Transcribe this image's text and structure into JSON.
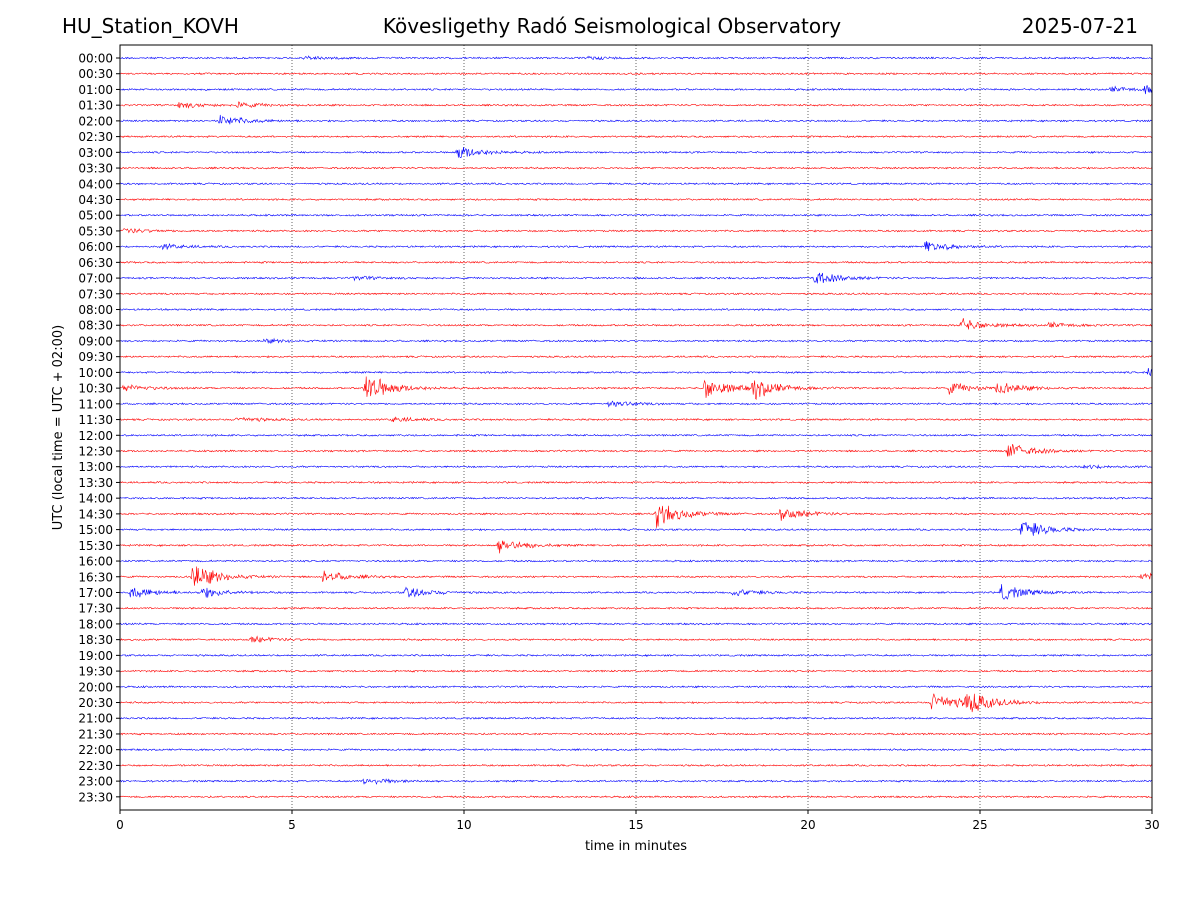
{
  "header": {
    "station": "HU_Station_KOVH",
    "observatory": "Kövesligethy Radó Seismological Observatory",
    "date": "2025-07-21"
  },
  "chart_data": {
    "type": "line",
    "title": "Kövesligethy Radó Seismological Observatory",
    "xlabel": "time in minutes",
    "ylabel": "UTC (local time = UTC + 02:00)",
    "xlim": [
      0,
      30
    ],
    "x_ticks": [
      0,
      5,
      10,
      15,
      20,
      25,
      30
    ],
    "x_grid": "dotted vertical lines at 5, 10, 15, 20, 25",
    "row_labels": [
      "00:00",
      "00:30",
      "01:00",
      "01:30",
      "02:00",
      "02:30",
      "03:00",
      "03:30",
      "04:00",
      "04:30",
      "05:00",
      "05:30",
      "06:00",
      "06:30",
      "07:00",
      "07:30",
      "08:00",
      "08:30",
      "09:00",
      "09:30",
      "10:00",
      "10:30",
      "11:00",
      "11:30",
      "12:00",
      "12:30",
      "13:00",
      "13:30",
      "14:00",
      "14:30",
      "15:00",
      "15:30",
      "16:00",
      "16:30",
      "17:00",
      "17:30",
      "18:00",
      "18:30",
      "19:00",
      "19:30",
      "20:00",
      "20:30",
      "21:00",
      "21:30",
      "22:00",
      "22:30",
      "23:00",
      "23:30"
    ],
    "trace_colors": [
      "#0000ff",
      "#ff0000"
    ],
    "baseline_noise": 0.07,
    "events": [
      {
        "row": "00:00",
        "minute": 5.3,
        "amplitude": 0.15
      },
      {
        "row": "00:00",
        "minute": 13.6,
        "amplitude": 0.12
      },
      {
        "row": "01:00",
        "minute": 28.8,
        "amplitude": 0.2
      },
      {
        "row": "01:00",
        "minute": 29.8,
        "amplitude": 0.3
      },
      {
        "row": "01:30",
        "minute": 1.7,
        "amplitude": 0.25
      },
      {
        "row": "01:30",
        "minute": 3.4,
        "amplitude": 0.2
      },
      {
        "row": "02:00",
        "minute": 2.9,
        "amplitude": 0.45
      },
      {
        "row": "03:00",
        "minute": 9.8,
        "amplitude": 0.55
      },
      {
        "row": "05:30",
        "minute": 0.1,
        "amplitude": 0.2
      },
      {
        "row": "06:00",
        "minute": 1.2,
        "amplitude": 0.2
      },
      {
        "row": "06:00",
        "minute": 23.4,
        "amplitude": 0.45
      },
      {
        "row": "07:00",
        "minute": 6.8,
        "amplitude": 0.15
      },
      {
        "row": "07:00",
        "minute": 20.1,
        "amplitude": 0.65
      },
      {
        "row": "08:30",
        "minute": 24.4,
        "amplitude": 0.55
      },
      {
        "row": "08:30",
        "minute": 27.0,
        "amplitude": 0.2
      },
      {
        "row": "09:00",
        "minute": 4.2,
        "amplitude": 0.15
      },
      {
        "row": "10:00",
        "minute": 29.9,
        "amplitude": 0.35
      },
      {
        "row": "10:30",
        "minute": 0.1,
        "amplitude": 0.3
      },
      {
        "row": "10:30",
        "minute": 7.1,
        "amplitude": 1.3
      },
      {
        "row": "10:30",
        "minute": 17.0,
        "amplitude": 0.9
      },
      {
        "row": "10:30",
        "minute": 18.4,
        "amplitude": 0.8
      },
      {
        "row": "10:30",
        "minute": 24.1,
        "amplitude": 0.45
      },
      {
        "row": "10:30",
        "minute": 25.5,
        "amplitude": 0.5
      },
      {
        "row": "11:00",
        "minute": 14.2,
        "amplitude": 0.25
      },
      {
        "row": "11:30",
        "minute": 3.4,
        "amplitude": 0.2
      },
      {
        "row": "11:30",
        "minute": 7.9,
        "amplitude": 0.2
      },
      {
        "row": "12:30",
        "minute": 25.8,
        "amplitude": 0.65
      },
      {
        "row": "13:00",
        "minute": 28.0,
        "amplitude": 0.15
      },
      {
        "row": "14:30",
        "minute": 15.6,
        "amplitude": 1.0
      },
      {
        "row": "14:30",
        "minute": 19.2,
        "amplitude": 0.55
      },
      {
        "row": "15:00",
        "minute": 26.2,
        "amplitude": 0.85
      },
      {
        "row": "15:30",
        "minute": 11.0,
        "amplitude": 0.6
      },
      {
        "row": "16:30",
        "minute": 2.1,
        "amplitude": 1.1
      },
      {
        "row": "16:30",
        "minute": 5.9,
        "amplitude": 0.45
      },
      {
        "row": "16:30",
        "minute": 29.7,
        "amplitude": 0.3
      },
      {
        "row": "17:00",
        "minute": 0.3,
        "amplitude": 0.5
      },
      {
        "row": "17:00",
        "minute": 2.4,
        "amplitude": 0.4
      },
      {
        "row": "17:00",
        "minute": 8.3,
        "amplitude": 0.45
      },
      {
        "row": "17:00",
        "minute": 17.8,
        "amplitude": 0.3
      },
      {
        "row": "17:00",
        "minute": 25.6,
        "amplitude": 0.7
      },
      {
        "row": "18:30",
        "minute": 3.8,
        "amplitude": 0.25
      },
      {
        "row": "20:30",
        "minute": 23.6,
        "amplitude": 0.9
      },
      {
        "row": "20:30",
        "minute": 24.6,
        "amplitude": 0.95
      },
      {
        "row": "23:00",
        "minute": 7.1,
        "amplitude": 0.3
      }
    ]
  }
}
